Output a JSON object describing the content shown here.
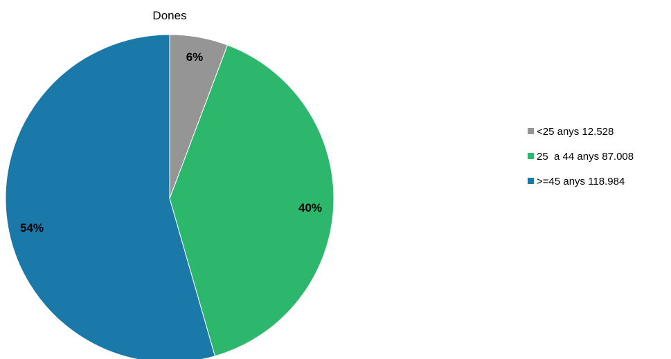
{
  "chart_data": {
    "type": "pie",
    "title": "Dones",
    "start_angle_deg": 0,
    "direction": "clockwise",
    "legend_position": "right",
    "slices": [
      {
        "label": "<25 anys 12.528",
        "value": 12528,
        "percent_label": "6%",
        "color": "#959595"
      },
      {
        "label": "25  a 44 anys 87.008",
        "value": 87008,
        "percent_label": "40%",
        "color": "#2db76d"
      },
      {
        "label": ">=45 anys 118.984",
        "value": 118984,
        "percent_label": "54%",
        "color": "#1b79aa"
      }
    ]
  }
}
